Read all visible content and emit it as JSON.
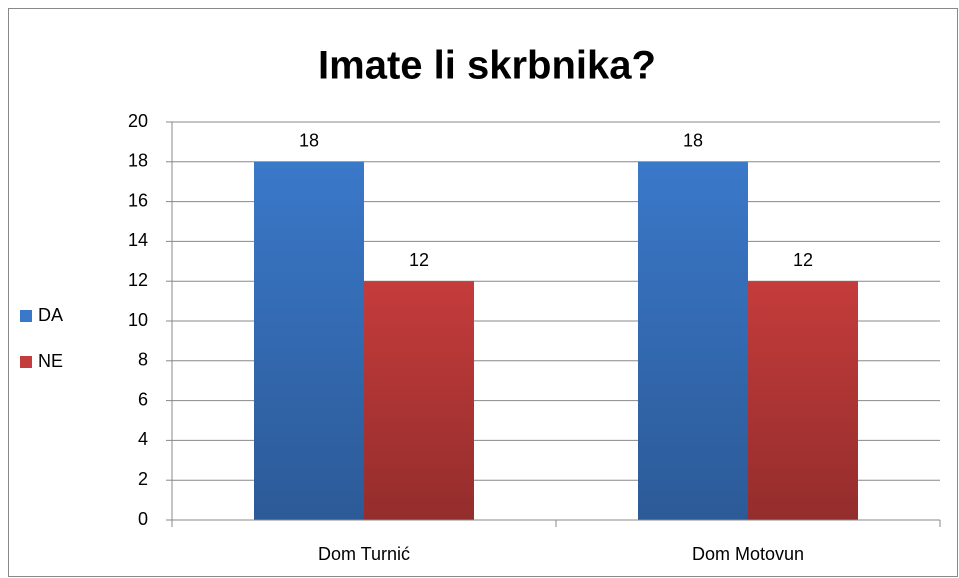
{
  "chart_data": {
    "type": "bar",
    "title": "Imate li skrbnika?",
    "categories": [
      "Dom Turnić",
      "Dom Motovun"
    ],
    "series": [
      {
        "name": "DA",
        "color": "#3a78c9",
        "values": [
          18,
          18
        ]
      },
      {
        "name": "NE",
        "color": "#c43c3b",
        "values": [
          12,
          12
        ]
      }
    ],
    "ylim": [
      0,
      20
    ],
    "yticks": [
      0,
      2,
      4,
      6,
      8,
      10,
      12,
      14,
      16,
      18,
      20
    ],
    "grid": true,
    "legend": "left"
  }
}
